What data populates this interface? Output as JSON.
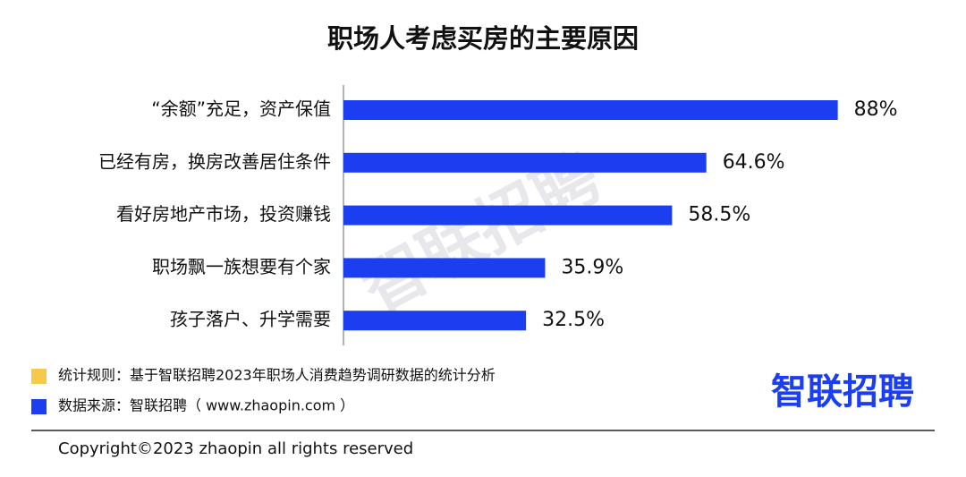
{
  "chart_data": {
    "type": "barh",
    "title": "职场人考虑买房的主要原因",
    "categories": [
      "“余额”充足，资产保值",
      "已经有房，换房改善居住条件",
      "看好房地产市场，投资赚钱",
      "职场飘一族想要有个家",
      "孩子落户、升学需要"
    ],
    "values": [
      88,
      64.6,
      58.5,
      35.9,
      32.5
    ],
    "value_labels": [
      "88%",
      "64.6%",
      "58.5%",
      "35.9%",
      "32.5%"
    ],
    "color": "#1a3ef0",
    "watermark": "智联招聘",
    "notes": [
      {
        "text": "统计规则：基于智联招聘2023年职场人消费趋势调研数据的统计分析",
        "color": "#f7c948"
      },
      {
        "text": "数据来源：智联招聘（ www.zhaopin.com ）",
        "color": "#1a3ef0"
      }
    ],
    "logo": "智联招聘",
    "copyright": "Copyright©2023 zhaopin all rights reserved"
  }
}
